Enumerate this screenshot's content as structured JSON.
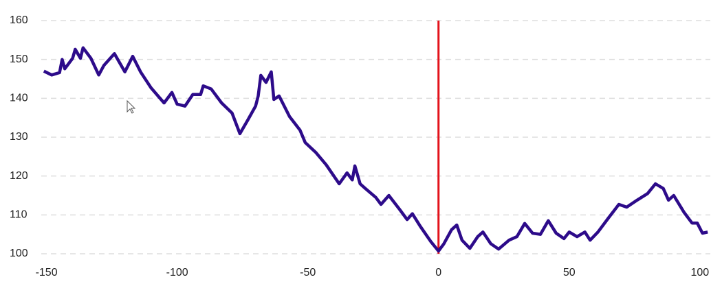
{
  "chart_data": {
    "type": "line",
    "x": [
      -151,
      -148,
      -145,
      -144,
      -143,
      -140,
      -139,
      -137,
      -136,
      -133,
      -130,
      -128,
      -124,
      -120,
      -117,
      -114,
      -110,
      -105,
      -102,
      -100,
      -97,
      -94,
      -91,
      -90,
      -87,
      -83,
      -79,
      -76,
      -73,
      -70,
      -69,
      -68,
      -66,
      -64,
      -63,
      -61,
      -57,
      -53,
      -51,
      -47,
      -43,
      -38,
      -35,
      -33,
      -32,
      -30,
      -28,
      -24,
      -22,
      -19,
      -15,
      -12,
      -10,
      -7,
      -3,
      0,
      2,
      5,
      7,
      9,
      12,
      15,
      17,
      20,
      23,
      27,
      30,
      33,
      36,
      39,
      42,
      45,
      48,
      50,
      53,
      56,
      58,
      61,
      65,
      69,
      72,
      76,
      80,
      83,
      86,
      88,
      90,
      94,
      97,
      99,
      101,
      103
    ],
    "series": [
      {
        "color": "#2d0b8a",
        "values": [
          147,
          146,
          146.6,
          150,
          147.6,
          150.3,
          152.6,
          150.3,
          153,
          150.3,
          146,
          148.5,
          151.5,
          146.8,
          150.8,
          146.8,
          142.7,
          138.8,
          141.5,
          138.5,
          138,
          141,
          141,
          143.2,
          142.4,
          138.8,
          136.2,
          130.9,
          134.4,
          138,
          140.6,
          145.9,
          144.1,
          146.8,
          139.7,
          140.6,
          135.3,
          131.8,
          128.6,
          126.1,
          122.9,
          118,
          120.8,
          119,
          122.6,
          118,
          116.8,
          114.5,
          112.7,
          115,
          111.5,
          108.8,
          110.3,
          107.1,
          103.2,
          100.7,
          102.5,
          106.2,
          107.4,
          103.5,
          101.4,
          104.4,
          105.6,
          102.6,
          101.2,
          103.5,
          104.4,
          107.8,
          105.3,
          105,
          108.5,
          105.3,
          103.9,
          105.6,
          104.4,
          105.6,
          103.5,
          105.6,
          109.2,
          112.7,
          112,
          113.8,
          115.5,
          118,
          116.8,
          113.8,
          115,
          110.6,
          107.9,
          107.9,
          105.3,
          105.6
        ]
      }
    ],
    "vline": {
      "x": 0,
      "color": "#e3121b"
    },
    "xlim": [
      -152,
      104
    ],
    "ylim": [
      100,
      160
    ],
    "xticks": [
      -150,
      -100,
      -50,
      0,
      50,
      100
    ],
    "yticks": [
      100,
      110,
      120,
      130,
      140,
      150,
      160
    ],
    "grid": true
  }
}
